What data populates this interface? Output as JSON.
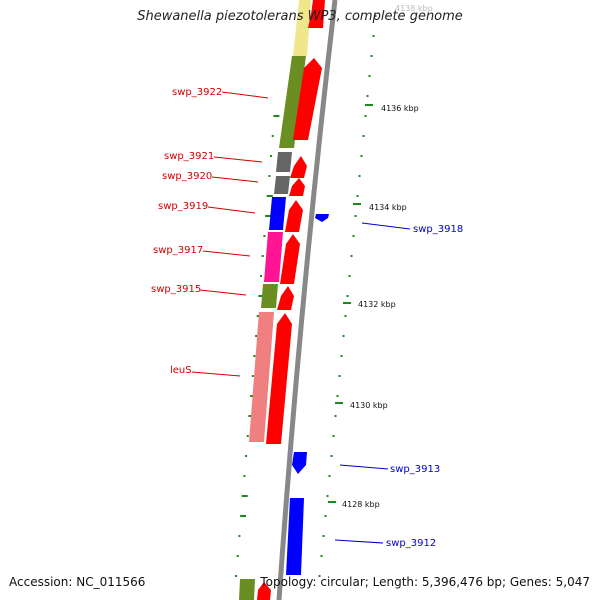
{
  "title": "Shewanella piezotolerans WP3, complete genome",
  "footer": {
    "accession": "Accession: NC_011566",
    "summary": "Topology: circular; Length: 5,396,476 bp; Genes: 5,047"
  },
  "ticks": [
    {
      "label": "4138 kbp"
    },
    {
      "label": "4136 kbp"
    },
    {
      "label": "4134 kbp"
    },
    {
      "label": "4132 kbp"
    },
    {
      "label": "4130 kbp"
    },
    {
      "label": "4128 kbp"
    }
  ],
  "genes_left": [
    {
      "label": "swp_3922"
    },
    {
      "label": "swp_3921"
    },
    {
      "label": "swp_3920"
    },
    {
      "label": "swp_3919"
    },
    {
      "label": "swp_3917"
    },
    {
      "label": "swp_3915"
    },
    {
      "label": "leuS"
    }
  ],
  "genes_right": [
    {
      "label": "swp_3918"
    },
    {
      "label": "swp_3913"
    },
    {
      "label": "swp_3912"
    }
  ],
  "colors": {
    "forward_arrow": "#ff0000",
    "reverse_arrow": "#0000ff",
    "backbone": "#888888",
    "tick": "#1a8a1a",
    "olive": "#6b8e23",
    "yellow": "#f0e68c",
    "gray": "#666666",
    "blue": "#0000ff",
    "magenta": "#ff1493",
    "salmon": "#f08080",
    "left_label": "#d40000",
    "right_label": "#0000cc"
  }
}
